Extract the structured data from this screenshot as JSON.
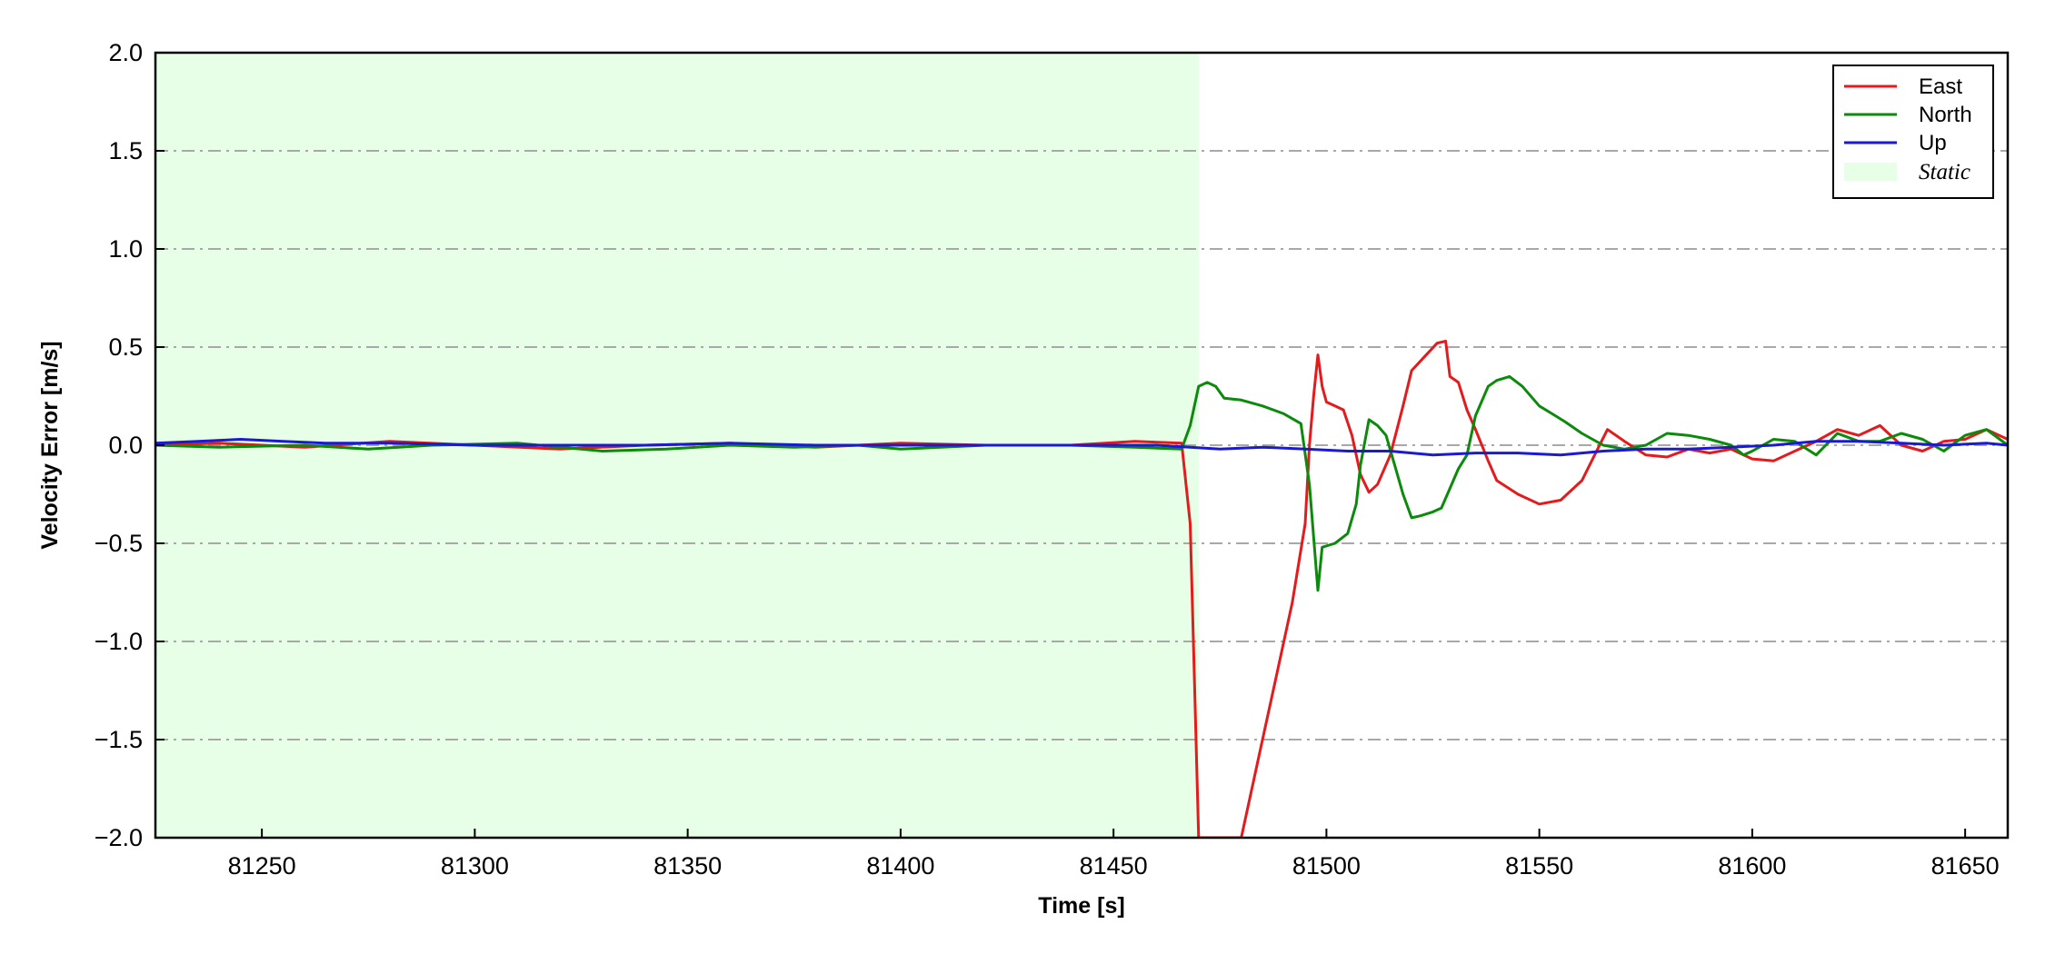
{
  "chart_data": {
    "type": "line",
    "title": "",
    "xlabel": "Time [s]",
    "ylabel": "Velocity Error [m/s]",
    "xlim": [
      81225,
      81660
    ],
    "ylim": [
      -2.0,
      2.0
    ],
    "xticks": [
      81250,
      81300,
      81350,
      81400,
      81450,
      81500,
      81550,
      81600,
      81650
    ],
    "xtick_labels": [
      "81250",
      "81300",
      "81350",
      "81400",
      "81450",
      "81500",
      "81550",
      "81600",
      "81650"
    ],
    "yticks": [
      -2.0,
      -1.5,
      -1.0,
      -0.5,
      0.0,
      0.5,
      1.0,
      1.5,
      2.0
    ],
    "ytick_labels": [
      "−2.0",
      "−1.5",
      "−1.0",
      "−0.5",
      "0.0",
      "0.5",
      "1.0",
      "1.5",
      "2.0"
    ],
    "grid": "horizontal dash-dot",
    "legend_position": "top-right",
    "static_region": {
      "name": "Static",
      "x_start": 81225,
      "x_end": 81470,
      "color": "#e6ffe6"
    },
    "series": [
      {
        "name": "East",
        "color": "#e41a1c",
        "points": [
          [
            81225,
            0.0
          ],
          [
            81240,
            0.01
          ],
          [
            81260,
            -0.01
          ],
          [
            81280,
            0.02
          ],
          [
            81300,
            0.0
          ],
          [
            81320,
            -0.02
          ],
          [
            81340,
            0.0
          ],
          [
            81360,
            0.01
          ],
          [
            81380,
            -0.01
          ],
          [
            81400,
            0.01
          ],
          [
            81420,
            0.0
          ],
          [
            81440,
            0.0
          ],
          [
            81455,
            0.02
          ],
          [
            81466,
            0.01
          ],
          [
            81468,
            -0.4
          ],
          [
            81469,
            -1.2
          ],
          [
            81470,
            -2.0
          ],
          [
            81480,
            -2.0
          ],
          [
            81484,
            -1.6
          ],
          [
            81488,
            -1.2
          ],
          [
            81492,
            -0.8
          ],
          [
            81495,
            -0.4
          ],
          [
            81496,
            0.0
          ],
          [
            81497,
            0.25
          ],
          [
            81498,
            0.46
          ],
          [
            81499,
            0.3
          ],
          [
            81500,
            0.22
          ],
          [
            81502,
            0.2
          ],
          [
            81504,
            0.18
          ],
          [
            81506,
            0.05
          ],
          [
            81508,
            -0.15
          ],
          [
            81510,
            -0.24
          ],
          [
            81512,
            -0.2
          ],
          [
            81515,
            -0.05
          ],
          [
            81518,
            0.2
          ],
          [
            81520,
            0.38
          ],
          [
            81523,
            0.45
          ],
          [
            81526,
            0.52
          ],
          [
            81528,
            0.53
          ],
          [
            81529,
            0.35
          ],
          [
            81531,
            0.32
          ],
          [
            81533,
            0.18
          ],
          [
            81535,
            0.08
          ],
          [
            81538,
            -0.08
          ],
          [
            81540,
            -0.18
          ],
          [
            81545,
            -0.25
          ],
          [
            81550,
            -0.3
          ],
          [
            81555,
            -0.28
          ],
          [
            81560,
            -0.18
          ],
          [
            81563,
            -0.05
          ],
          [
            81566,
            0.08
          ],
          [
            81570,
            0.02
          ],
          [
            81575,
            -0.05
          ],
          [
            81580,
            -0.06
          ],
          [
            81585,
            -0.02
          ],
          [
            81590,
            -0.04
          ],
          [
            81595,
            -0.02
          ],
          [
            81600,
            -0.07
          ],
          [
            81605,
            -0.08
          ],
          [
            81610,
            -0.03
          ],
          [
            81615,
            0.02
          ],
          [
            81620,
            0.08
          ],
          [
            81625,
            0.05
          ],
          [
            81630,
            0.1
          ],
          [
            81635,
            0.0
          ],
          [
            81640,
            -0.03
          ],
          [
            81645,
            0.02
          ],
          [
            81650,
            0.03
          ],
          [
            81655,
            0.08
          ],
          [
            81660,
            0.03
          ]
        ]
      },
      {
        "name": "North",
        "color": "#0b8a0b",
        "points": [
          [
            81225,
            0.0
          ],
          [
            81240,
            -0.01
          ],
          [
            81260,
            0.0
          ],
          [
            81275,
            -0.02
          ],
          [
            81290,
            0.0
          ],
          [
            81310,
            0.01
          ],
          [
            81330,
            -0.03
          ],
          [
            81345,
            -0.02
          ],
          [
            81360,
            0.0
          ],
          [
            81375,
            -0.01
          ],
          [
            81390,
            0.0
          ],
          [
            81400,
            -0.02
          ],
          [
            81420,
            0.0
          ],
          [
            81440,
            0.0
          ],
          [
            81455,
            -0.01
          ],
          [
            81466,
            -0.02
          ],
          [
            81468,
            0.1
          ],
          [
            81470,
            0.3
          ],
          [
            81472,
            0.32
          ],
          [
            81474,
            0.3
          ],
          [
            81476,
            0.24
          ],
          [
            81480,
            0.23
          ],
          [
            81485,
            0.2
          ],
          [
            81490,
            0.16
          ],
          [
            81494,
            0.11
          ],
          [
            81496,
            -0.2
          ],
          [
            81498,
            -0.74
          ],
          [
            81499,
            -0.52
          ],
          [
            81502,
            -0.5
          ],
          [
            81505,
            -0.45
          ],
          [
            81507,
            -0.3
          ],
          [
            81508,
            -0.1
          ],
          [
            81510,
            0.13
          ],
          [
            81512,
            0.1
          ],
          [
            81514,
            0.05
          ],
          [
            81516,
            -0.1
          ],
          [
            81518,
            -0.25
          ],
          [
            81520,
            -0.37
          ],
          [
            81522,
            -0.36
          ],
          [
            81525,
            -0.34
          ],
          [
            81527,
            -0.32
          ],
          [
            81529,
            -0.22
          ],
          [
            81531,
            -0.12
          ],
          [
            81533,
            -0.05
          ],
          [
            81535,
            0.15
          ],
          [
            81538,
            0.3
          ],
          [
            81540,
            0.33
          ],
          [
            81543,
            0.35
          ],
          [
            81546,
            0.3
          ],
          [
            81550,
            0.2
          ],
          [
            81553,
            0.16
          ],
          [
            81556,
            0.12
          ],
          [
            81560,
            0.06
          ],
          [
            81565,
            0.0
          ],
          [
            81570,
            -0.02
          ],
          [
            81575,
            0.0
          ],
          [
            81580,
            0.06
          ],
          [
            81585,
            0.05
          ],
          [
            81590,
            0.03
          ],
          [
            81595,
            0.0
          ],
          [
            81598,
            -0.05
          ],
          [
            81600,
            -0.03
          ],
          [
            81605,
            0.03
          ],
          [
            81610,
            0.02
          ],
          [
            81615,
            -0.05
          ],
          [
            81620,
            0.06
          ],
          [
            81625,
            0.02
          ],
          [
            81630,
            0.02
          ],
          [
            81635,
            0.06
          ],
          [
            81640,
            0.03
          ],
          [
            81645,
            -0.03
          ],
          [
            81650,
            0.05
          ],
          [
            81655,
            0.08
          ],
          [
            81660,
            0.0
          ]
        ]
      },
      {
        "name": "Up",
        "color": "#1a1ad4",
        "points": [
          [
            81225,
            0.01
          ],
          [
            81235,
            0.02
          ],
          [
            81245,
            0.03
          ],
          [
            81255,
            0.02
          ],
          [
            81265,
            0.01
          ],
          [
            81280,
            0.01
          ],
          [
            81300,
            0.0
          ],
          [
            81320,
            0.0
          ],
          [
            81340,
            0.0
          ],
          [
            81360,
            0.01
          ],
          [
            81380,
            0.0
          ],
          [
            81400,
            0.0
          ],
          [
            81420,
            0.0
          ],
          [
            81440,
            0.0
          ],
          [
            81460,
            0.0
          ],
          [
            81468,
            -0.01
          ],
          [
            81475,
            -0.02
          ],
          [
            81485,
            -0.01
          ],
          [
            81495,
            -0.02
          ],
          [
            81505,
            -0.03
          ],
          [
            81515,
            -0.03
          ],
          [
            81525,
            -0.05
          ],
          [
            81535,
            -0.04
          ],
          [
            81545,
            -0.04
          ],
          [
            81555,
            -0.05
          ],
          [
            81565,
            -0.03
          ],
          [
            81575,
            -0.02
          ],
          [
            81585,
            -0.02
          ],
          [
            81595,
            -0.01
          ],
          [
            81605,
            0.0
          ],
          [
            81615,
            0.02
          ],
          [
            81625,
            0.02
          ],
          [
            81635,
            0.01
          ],
          [
            81645,
            0.0
          ],
          [
            81655,
            0.01
          ],
          [
            81660,
            0.0
          ]
        ]
      }
    ]
  }
}
